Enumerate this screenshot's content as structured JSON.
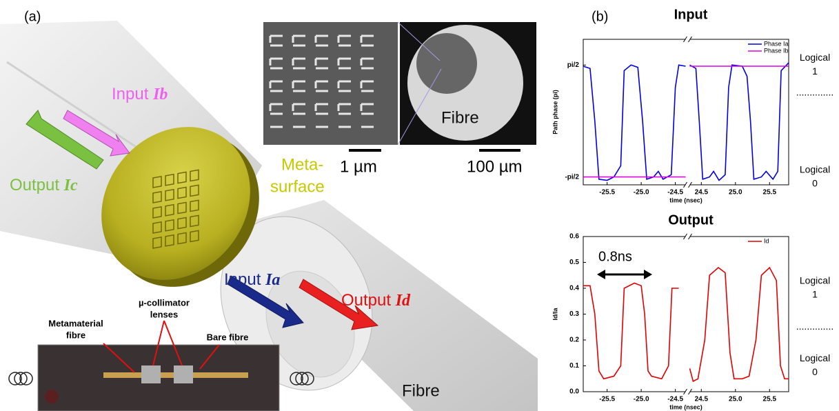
{
  "figure": {
    "panel_a": {
      "label": "(a)",
      "input_b": {
        "text": "Input",
        "var": "Ib"
      },
      "output_c": {
        "text": "Output",
        "var": "Ic"
      },
      "input_a": {
        "text": "Input",
        "var": "Ia"
      },
      "output_d": {
        "text": "Output",
        "var": "Id"
      },
      "metasurface": [
        "Meta-",
        "surface"
      ],
      "sem_fibre": "Fibre",
      "fibre": "Fibre",
      "scale_1": "1 µm",
      "scale_2": "100 µm",
      "photo_labels": {
        "metamaterial": [
          "Metamaterial",
          "fibre"
        ],
        "collimator": [
          "µ-collimator",
          "lenses"
        ],
        "bare": "Bare fibre"
      }
    },
    "panel_b_label": "(b)"
  },
  "chart_data": [
    {
      "type": "line",
      "title": "Input",
      "x_label": "time (nsec)",
      "y_label": "Path phase (pi)",
      "xlim": [
        -25.85,
        25.78
      ],
      "xbreak": [
        -24.35,
        24.33
      ],
      "xticks": [
        -25.5,
        {
          "value": -25.0,
          "label": "-25.0"
        },
        -24.5,
        24.5,
        {
          "value": 25.0,
          "label": "25.0"
        },
        25.5
      ],
      "ylim": [
        -0.57,
        0.73
      ],
      "yticks": [
        {
          "value": -0.5,
          "label": "-pi/2"
        },
        {
          "value": 0.5,
          "label": "pi/2"
        }
      ],
      "side_labels": [
        [
          "Logical",
          "1"
        ],
        [
          ".............."
        ],
        [
          "Logical",
          "0"
        ]
      ],
      "side_values": [
        0.5,
        0.25,
        -0.5
      ],
      "series": [
        {
          "name": "Phase Ia",
          "color": "#0000e0",
          "x": [
            -25.85,
            -25.75,
            -25.68,
            -25.62,
            -25.5,
            -25.4,
            -25.3,
            -25.25,
            -25.15,
            -25.05,
            -24.98,
            -24.92,
            -24.82,
            -24.75,
            -24.68,
            -24.56,
            -24.5,
            -24.45,
            -24.35,
            24.33,
            24.42,
            24.47,
            24.52,
            24.62,
            24.68,
            24.76,
            24.85,
            24.9,
            24.95,
            25.1,
            25.17,
            25.22,
            25.27,
            25.38,
            25.45,
            25.55,
            25.62,
            25.67,
            25.78
          ],
          "values": [
            0.49,
            0.47,
            0.0,
            -0.52,
            -0.53,
            -0.5,
            -0.4,
            0.45,
            0.5,
            0.48,
            0.0,
            -0.52,
            -0.5,
            -0.45,
            -0.52,
            -0.48,
            0.3,
            0.5,
            0.49,
            0.5,
            0.47,
            0.0,
            -0.52,
            -0.5,
            -0.45,
            -0.53,
            -0.48,
            0.3,
            0.5,
            0.49,
            0.4,
            0.0,
            -0.52,
            -0.5,
            -0.45,
            -0.52,
            -0.45,
            0.45,
            0.52
          ]
        },
        {
          "name": "Phase Ib",
          "color": "#e000e0",
          "x": [
            -25.85,
            -24.35,
            24.33,
            25.78
          ],
          "values": [
            -0.5,
            -0.5,
            0.49,
            0.49
          ]
        }
      ]
    },
    {
      "type": "line",
      "title": "Output",
      "x_label": "time (nsec)",
      "y_label": "Id/Ia",
      "xlim": [
        -25.85,
        25.78
      ],
      "xbreak": [
        -24.35,
        24.33
      ],
      "xticks": [
        -25.5,
        {
          "value": -25.0,
          "label": "-25.0"
        },
        -24.5,
        24.5,
        {
          "value": 25.0,
          "label": "25.0"
        },
        25.5
      ],
      "ylim": [
        0,
        0.6
      ],
      "yticks": [
        {
          "value": 0,
          "label": "0.0"
        },
        0.1,
        0.2,
        0.3,
        0.4,
        0.5,
        0.6
      ],
      "annotation": "0.8ns",
      "side_labels": [
        [
          "Logical",
          "1"
        ],
        [
          ".............."
        ],
        [
          "Logical",
          "0"
        ]
      ],
      "side_values": [
        0.4,
        0.25,
        0.1
      ],
      "series": [
        {
          "name": "Id",
          "color": "#e00000",
          "x": [
            -25.85,
            -25.75,
            -25.68,
            -25.62,
            -25.55,
            -25.4,
            -25.3,
            -25.25,
            -25.1,
            -25.0,
            -24.95,
            -24.9,
            -24.85,
            -24.7,
            -24.6,
            -24.55,
            -24.45,
            24.33,
            24.38,
            24.45,
            24.55,
            24.62,
            24.75,
            24.85,
            24.92,
            24.98,
            25.1,
            25.2,
            25.3,
            25.38,
            25.5,
            25.6,
            25.66,
            25.72,
            25.78
          ],
          "values": [
            0.41,
            0.41,
            0.3,
            0.08,
            0.05,
            0.06,
            0.1,
            0.4,
            0.42,
            0.41,
            0.3,
            0.08,
            0.06,
            0.05,
            0.1,
            0.4,
            0.4,
            0.09,
            0.04,
            0.05,
            0.2,
            0.45,
            0.48,
            0.46,
            0.15,
            0.05,
            0.05,
            0.06,
            0.2,
            0.45,
            0.48,
            0.43,
            0.1,
            0.05,
            0.05
          ]
        }
      ]
    }
  ]
}
